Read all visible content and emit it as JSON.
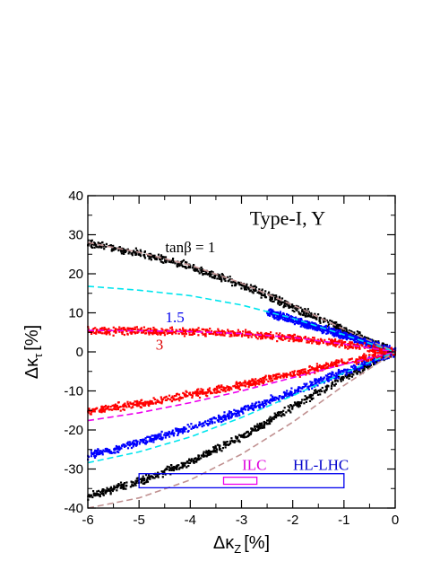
{
  "chart_data": {
    "type": "scatter",
    "title": "Type-I, Y",
    "xlabel": {
      "main": "Δκ",
      "sub": "Z",
      "unit": "[%]"
    },
    "ylabel": {
      "main": "Δκ",
      "sub": "τ",
      "unit": "[%]"
    },
    "xlim": [
      -6,
      0
    ],
    "ylim": [
      -40,
      40
    ],
    "xticks": [
      -6,
      -5,
      -4,
      -3,
      -2,
      -1,
      0
    ],
    "xtick_labels": [
      "-6",
      "-5",
      "-4",
      "-3",
      "-2",
      "-1",
      "0"
    ],
    "yticks": [
      -40,
      -30,
      -20,
      -10,
      0,
      10,
      20,
      30,
      40
    ],
    "ytick_labels": [
      "-40",
      "-30",
      "-20",
      "-10",
      "0",
      "10",
      "20",
      "30",
      "40"
    ],
    "grid": false,
    "series": [
      {
        "label": "tanβ = 1",
        "label_color": "#000000",
        "color": "#000000",
        "upper": [
          [
            -6,
            27.8
          ],
          [
            -5,
            25.2
          ],
          [
            -4,
            21.8
          ],
          [
            -3,
            17.2
          ],
          [
            -2,
            11.6
          ],
          [
            -1,
            5.6
          ],
          [
            0,
            0
          ]
        ],
        "lower": [
          [
            -6,
            -37
          ],
          [
            -5,
            -33.2
          ],
          [
            -4,
            -28.2
          ],
          [
            -3,
            -21.6
          ],
          [
            -2,
            -14.2
          ],
          [
            -1,
            -6.6
          ],
          [
            0,
            0
          ]
        ]
      },
      {
        "label": "1.5",
        "label_color": "#0000ee",
        "color": "#0000ff",
        "upper": [
          [
            -2.5,
            10.2
          ],
          [
            -2,
            8.2
          ],
          [
            -1,
            4.2
          ],
          [
            0,
            0
          ]
        ],
        "lower": [
          [
            -6,
            -26.5
          ],
          [
            -5,
            -23.2
          ],
          [
            -4,
            -19.4
          ],
          [
            -3,
            -15.2
          ],
          [
            -2,
            -10.2
          ],
          [
            -1,
            -5.0
          ],
          [
            0,
            0
          ]
        ]
      },
      {
        "label": "3",
        "label_color": "#dd0000",
        "color": "#ff0000",
        "upper": [
          [
            -6,
            5.4
          ],
          [
            -5,
            5.3
          ],
          [
            -4,
            5.1
          ],
          [
            -3,
            4.6
          ],
          [
            -2,
            3.6
          ],
          [
            -1,
            2.0
          ],
          [
            0,
            0
          ]
        ],
        "lower": [
          [
            -6,
            -15.2
          ],
          [
            -5,
            -13.2
          ],
          [
            -4,
            -11.0
          ],
          [
            -3,
            -8.4
          ],
          [
            -2,
            -5.6
          ],
          [
            -1,
            -2.6
          ],
          [
            0,
            0
          ]
        ]
      }
    ],
    "dashed_curves": [
      {
        "color": "#c09090",
        "upper": [
          [
            -6,
            28.0
          ],
          [
            -5,
            25.5
          ],
          [
            -4,
            22.2
          ],
          [
            -3,
            17.6
          ],
          [
            -2,
            12.0
          ],
          [
            -1,
            5.8
          ],
          [
            0,
            0
          ]
        ],
        "lower": [
          [
            -6,
            -40
          ],
          [
            -5,
            -37.4
          ],
          [
            -4,
            -32.8
          ],
          [
            -3,
            -26.2
          ],
          [
            -2,
            -18.0
          ],
          [
            -1,
            -8.6
          ],
          [
            0,
            0
          ]
        ]
      },
      {
        "color": "#00e5ee",
        "upper": [
          [
            -6,
            16.8
          ],
          [
            -5,
            15.8
          ],
          [
            -4,
            14.4
          ],
          [
            -3,
            12.0
          ],
          [
            -2,
            8.6
          ],
          [
            -1,
            4.4
          ],
          [
            0,
            0
          ]
        ],
        "lower": [
          [
            -6,
            -28.4
          ],
          [
            -5,
            -25.6
          ],
          [
            -4,
            -21.8
          ],
          [
            -3,
            -16.8
          ],
          [
            -2,
            -11.2
          ],
          [
            -1,
            -5.4
          ],
          [
            0,
            0
          ]
        ]
      },
      {
        "color": "#ee00ee",
        "upper": [
          [
            -6,
            5.5
          ],
          [
            -5,
            5.4
          ],
          [
            -4,
            5.2
          ],
          [
            -3,
            4.7
          ],
          [
            -2,
            3.7
          ],
          [
            -1,
            2.0
          ],
          [
            0,
            0
          ]
        ],
        "lower": [
          [
            -6,
            -17.6
          ],
          [
            -5,
            -15.6
          ],
          [
            -4,
            -13.0
          ],
          [
            -3,
            -10.0
          ],
          [
            -2,
            -6.6
          ],
          [
            -1,
            -3.2
          ],
          [
            0,
            0
          ]
        ]
      }
    ],
    "annotations": [
      {
        "text": "tanβ = 1",
        "x": -4.0,
        "y": 25.5,
        "color": "#000000"
      },
      {
        "text": "1.5",
        "x": -4.3,
        "y": 7.6,
        "color": "#0000ee"
      },
      {
        "text": "3",
        "x": -4.6,
        "y": 0.6,
        "color": "#dd0000"
      },
      {
        "text": "ILC",
        "x": -2.75,
        "y": -30.2,
        "color": "#dd00dd"
      },
      {
        "text": "HL-LHC",
        "x": -1.45,
        "y": -30.2,
        "color": "#0000cc"
      }
    ],
    "boxes": [
      {
        "name": "HL-LHC",
        "x": [
          -5,
          -1
        ],
        "y": [
          -34.8,
          -31.2
        ],
        "color": "#0000ee"
      },
      {
        "name": "ILC",
        "x": [
          -3.35,
          -2.7
        ],
        "y": [
          -33.9,
          -32.1
        ],
        "color": "#ee00ee"
      }
    ]
  }
}
